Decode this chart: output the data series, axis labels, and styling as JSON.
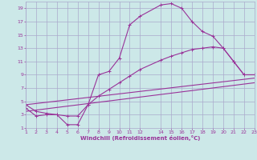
{
  "xlabel": "Windchill (Refroidissement éolien,°C)",
  "bg_color": "#cce8e8",
  "grid_color": "#aaaacc",
  "line_color": "#993399",
  "xlim": [
    1,
    23
  ],
  "ylim": [
    1,
    20
  ],
  "xticks": [
    1,
    2,
    3,
    4,
    5,
    6,
    7,
    8,
    9,
    10,
    11,
    12,
    14,
    15,
    16,
    17,
    18,
    19,
    20,
    21,
    22,
    23
  ],
  "yticks": [
    1,
    3,
    5,
    7,
    9,
    11,
    13,
    15,
    17,
    19
  ],
  "curve1_x": [
    1,
    2,
    3,
    4,
    5,
    6,
    7,
    8,
    9,
    10,
    11,
    12,
    14,
    15,
    16,
    17,
    18,
    19,
    20,
    21,
    22,
    23
  ],
  "curve1_y": [
    4.0,
    2.8,
    3.0,
    3.0,
    1.5,
    1.5,
    4.5,
    9.0,
    9.5,
    11.5,
    16.5,
    17.8,
    19.5,
    19.7,
    19.0,
    17.0,
    15.5,
    14.8,
    13.0,
    11.0,
    9.0,
    9.0
  ],
  "curve2_x": [
    1,
    2,
    3,
    4,
    5,
    6,
    7,
    8,
    9,
    10,
    11,
    12,
    14,
    15,
    16,
    17,
    18,
    19,
    20,
    21,
    22,
    23
  ],
  "curve2_y": [
    4.5,
    3.5,
    3.2,
    3.0,
    2.8,
    2.8,
    4.5,
    5.8,
    6.8,
    7.8,
    8.8,
    9.8,
    11.2,
    11.8,
    12.3,
    12.8,
    13.0,
    13.2,
    13.0,
    11.0,
    9.0,
    9.0
  ],
  "curve3_x": [
    1,
    23
  ],
  "curve3_y": [
    4.5,
    8.5
  ],
  "curve4_x": [
    1,
    23
  ],
  "curve4_y": [
    3.5,
    7.8
  ]
}
